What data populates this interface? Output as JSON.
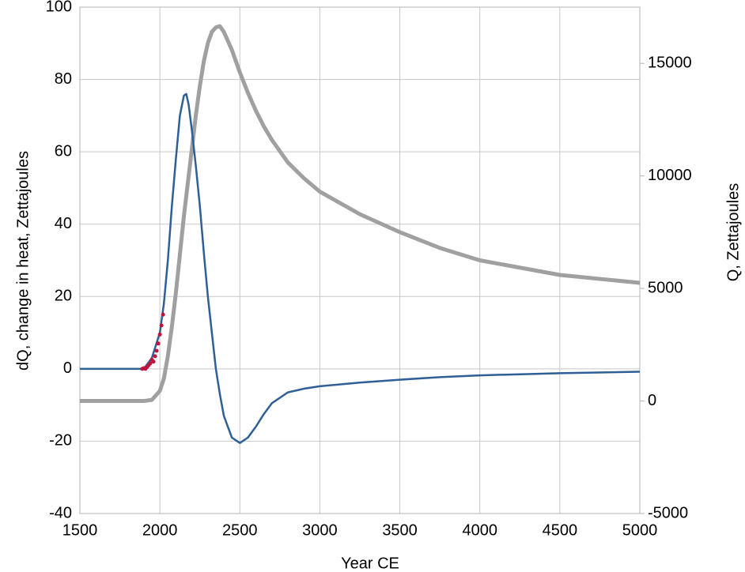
{
  "chart_data": {
    "type": "line",
    "xlabel": "Year CE",
    "ylabel": "dQ, change in heat, Zettajoules",
    "y2label": "Q, Zettajoules",
    "xlim": [
      1500,
      5000
    ],
    "xticks": [
      1500,
      2000,
      2500,
      3000,
      3500,
      4000,
      4500,
      5000
    ],
    "ylim": [
      -40,
      100
    ],
    "yticks": [
      -40,
      -20,
      0,
      20,
      40,
      60,
      80,
      100
    ],
    "y2lim": [
      -5000,
      17500
    ],
    "y2ticks": [
      -5000,
      0,
      5000,
      10000,
      15000
    ],
    "grid": true,
    "x": [
      1500,
      1600,
      1700,
      1800,
      1850,
      1900,
      1950,
      2000,
      2025,
      2050,
      2075,
      2100,
      2125,
      2150,
      2165,
      2180,
      2200,
      2225,
      2250,
      2275,
      2300,
      2325,
      2350,
      2375,
      2400,
      2450,
      2500,
      2550,
      2600,
      2650,
      2700,
      2800,
      2900,
      3000,
      3250,
      3500,
      3750,
      4000,
      4500,
      5000
    ],
    "series": [
      {
        "color": "#2e5f97",
        "axis": "y",
        "values": [
          0,
          0,
          0,
          0,
          0,
          0,
          3,
          10,
          18,
          30,
          45,
          58,
          70,
          75.5,
          76,
          73,
          66,
          56,
          45,
          32,
          20,
          10,
          0,
          -7,
          -13,
          -19,
          -20.5,
          -19,
          -16,
          -12.5,
          -9.5,
          -6.5,
          -5.5,
          -4.8,
          -3.8,
          -3,
          -2.3,
          -1.8,
          -1.2,
          -0.8
        ]
      },
      {
        "color": "#a0a0a0",
        "axis": "y2",
        "values": [
          0,
          0,
          0,
          0,
          0,
          0,
          50,
          450,
          1000,
          2000,
          3300,
          4800,
          6500,
          8200,
          9100,
          10000,
          11200,
          12700,
          14000,
          15100,
          15900,
          16400,
          16600,
          16650,
          16400,
          15600,
          14600,
          13700,
          12900,
          12200,
          11600,
          10600,
          9900,
          9300,
          8300,
          7500,
          6800,
          6250,
          5600,
          5250
        ]
      },
      {
        "color": "#c0143c",
        "axis": "y",
        "markers": true,
        "x": [
          1890,
          1900,
          1910,
          1920,
          1930,
          1940,
          1950,
          1960,
          1970,
          1980,
          1990,
          2000,
          2010,
          2020
        ],
        "values": [
          0,
          0.2,
          0,
          0.5,
          1,
          1.5,
          2.5,
          2,
          3.5,
          5,
          7,
          9.5,
          12,
          15
        ]
      }
    ]
  }
}
